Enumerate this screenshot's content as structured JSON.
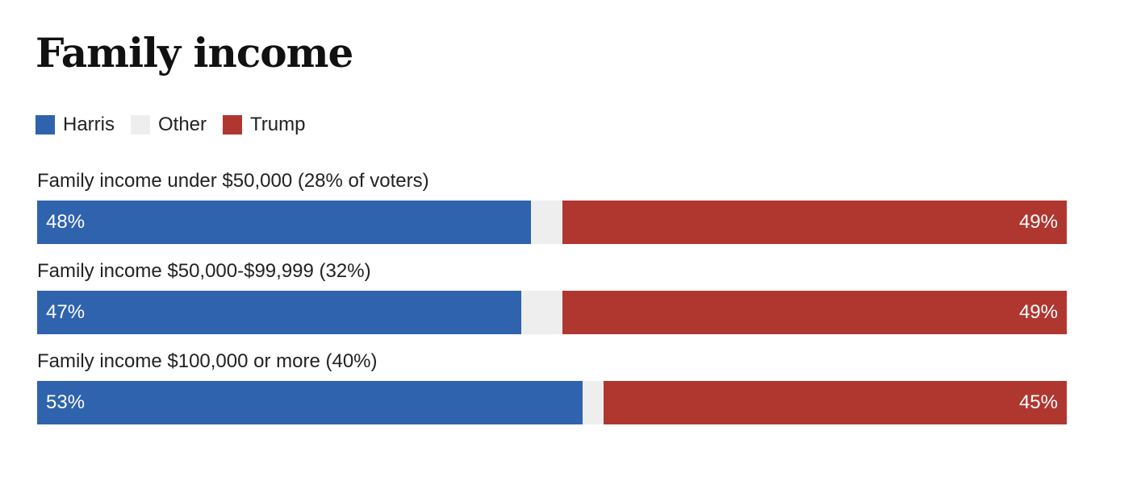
{
  "chart_data": {
    "type": "bar",
    "stacked": true,
    "orientation": "horizontal",
    "title": "Family income",
    "legend": [
      {
        "name": "Harris",
        "color": "#2f63ad"
      },
      {
        "name": "Other",
        "color": "#eeeeee"
      },
      {
        "name": "Trump",
        "color": "#b03630"
      }
    ],
    "legend_placement": "top-left",
    "grid": false,
    "xlim": [
      0,
      100
    ],
    "categories": [
      "Family income under $50,000 (28% of voters)",
      "Family income $50,000-$99,999 (32%)",
      "Family income $100,000 or more (40%)"
    ],
    "series": [
      {
        "name": "Harris",
        "values": [
          48,
          47,
          53
        ]
      },
      {
        "name": "Other",
        "values": [
          3,
          4,
          2
        ]
      },
      {
        "name": "Trump",
        "values": [
          49,
          49,
          45
        ]
      }
    ],
    "data_labels": [
      {
        "harris": "48%",
        "trump": "49%"
      },
      {
        "harris": "47%",
        "trump": "49%"
      },
      {
        "harris": "53%",
        "trump": "45%"
      }
    ]
  }
}
